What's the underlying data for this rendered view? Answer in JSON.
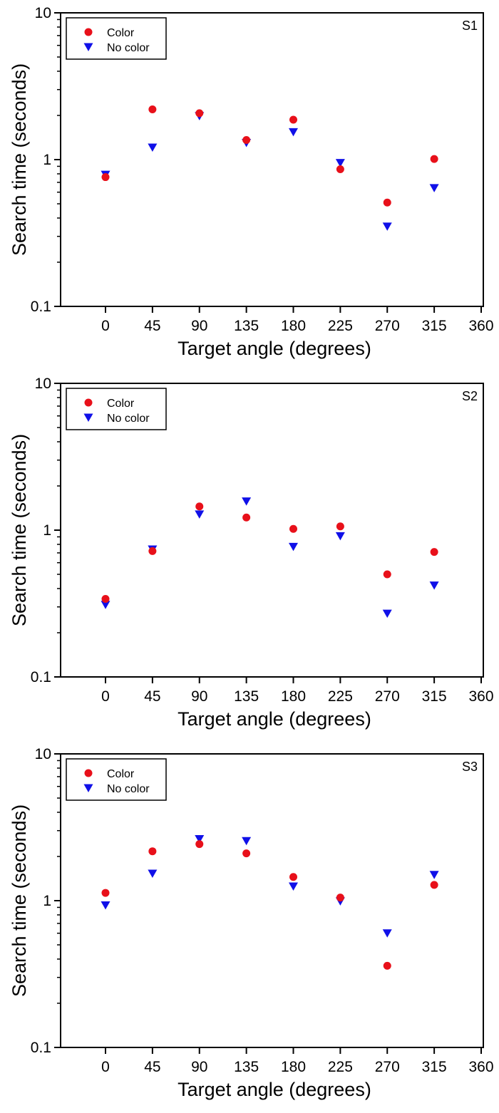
{
  "chart_data": [
    {
      "type": "scatter",
      "panel_label": "S1",
      "xlabel": "Target angle (degrees)",
      "ylabel": "Search time (seconds)",
      "x_ticks": [
        "0",
        "45",
        "90",
        "135",
        "180",
        "225",
        "270",
        "315",
        "360"
      ],
      "y_ticks": [
        "0.1",
        "1",
        "10"
      ],
      "ylim": [
        0.1,
        10
      ],
      "yscale": "log",
      "legend_position": "top-left",
      "x": [
        0,
        45,
        90,
        135,
        180,
        225,
        270,
        315
      ],
      "series": [
        {
          "name": "Color",
          "marker": "circle",
          "color": "#e8101a",
          "values": [
            0.76,
            2.2,
            2.07,
            1.36,
            1.87,
            0.86,
            0.51,
            1.01
          ]
        },
        {
          "name": "No color",
          "marker": "triangle-down",
          "color": "#1010e8",
          "values": [
            0.79,
            1.21,
            1.98,
            1.3,
            1.54,
            0.95,
            0.35,
            0.64
          ]
        }
      ]
    },
    {
      "type": "scatter",
      "panel_label": "S2",
      "xlabel": "Target angle (degrees)",
      "ylabel": "Search time (seconds)",
      "x_ticks": [
        "0",
        "45",
        "90",
        "135",
        "180",
        "225",
        "270",
        "315",
        "360"
      ],
      "y_ticks": [
        "0.1",
        "1",
        "10"
      ],
      "ylim": [
        0.1,
        10
      ],
      "yscale": "log",
      "legend_position": "top-left",
      "x": [
        0,
        45,
        90,
        135,
        180,
        225,
        270,
        315
      ],
      "series": [
        {
          "name": "Color",
          "marker": "circle",
          "color": "#e8101a",
          "values": [
            0.34,
            0.72,
            1.45,
            1.22,
            1.02,
            1.06,
            0.5,
            0.71
          ]
        },
        {
          "name": "No color",
          "marker": "triangle-down",
          "color": "#1010e8",
          "values": [
            0.31,
            0.74,
            1.28,
            1.57,
            0.77,
            0.91,
            0.27,
            0.42
          ]
        }
      ]
    },
    {
      "type": "scatter",
      "panel_label": "S3",
      "xlabel": "Target angle (degrees)",
      "ylabel": "Search time (seconds)",
      "x_ticks": [
        "0",
        "45",
        "90",
        "135",
        "180",
        "225",
        "270",
        "315",
        "360"
      ],
      "y_ticks": [
        "0.1",
        "1",
        "10"
      ],
      "ylim": [
        0.1,
        10
      ],
      "yscale": "log",
      "legend_position": "top-left",
      "x": [
        0,
        45,
        90,
        135,
        180,
        225,
        270,
        315
      ],
      "series": [
        {
          "name": "Color",
          "marker": "circle",
          "color": "#e8101a",
          "values": [
            1.13,
            2.17,
            2.43,
            2.1,
            1.45,
            1.05,
            0.36,
            1.28
          ]
        },
        {
          "name": "No color",
          "marker": "triangle-down",
          "color": "#1010e8",
          "values": [
            0.93,
            1.53,
            2.63,
            2.55,
            1.25,
            0.99,
            0.6,
            1.5
          ]
        }
      ]
    }
  ]
}
